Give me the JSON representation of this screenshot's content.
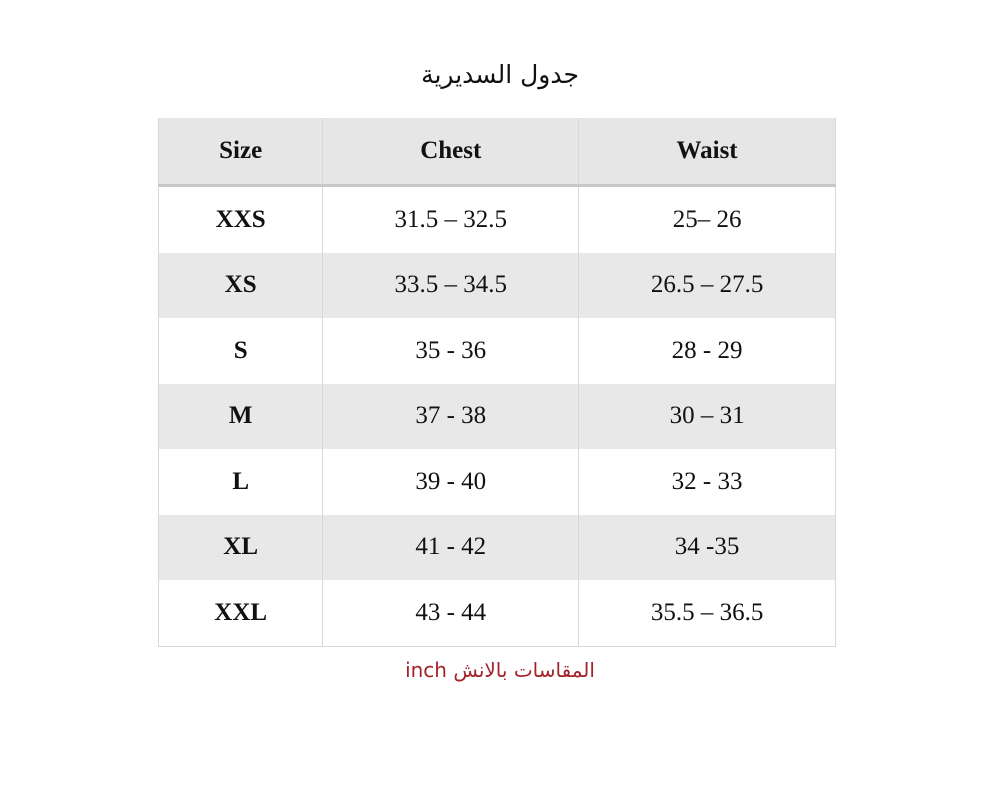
{
  "title": "جدول السديرية",
  "table": {
    "headers": [
      "Size",
      "Chest",
      "Waist"
    ],
    "rows": [
      [
        "XXS",
        "31.5 – 32.5",
        "25– 26"
      ],
      [
        "XS",
        "33.5 – 34.5",
        "26.5 – 27.5"
      ],
      [
        "S",
        "35 - 36",
        "28 - 29"
      ],
      [
        "M",
        "37 - 38",
        "30 – 31"
      ],
      [
        "L",
        "39 - 40",
        "32 - 33"
      ],
      [
        "XL",
        "41 - 42",
        "34 -35"
      ],
      [
        "XXL",
        "43 - 44",
        "35.5 – 36.5"
      ]
    ]
  },
  "note": "المقاسات بالانش inch",
  "colors": {
    "header_bg": "#e6e6e6",
    "alt_row_bg": "#e8e8e8",
    "note": "#a3222b"
  }
}
